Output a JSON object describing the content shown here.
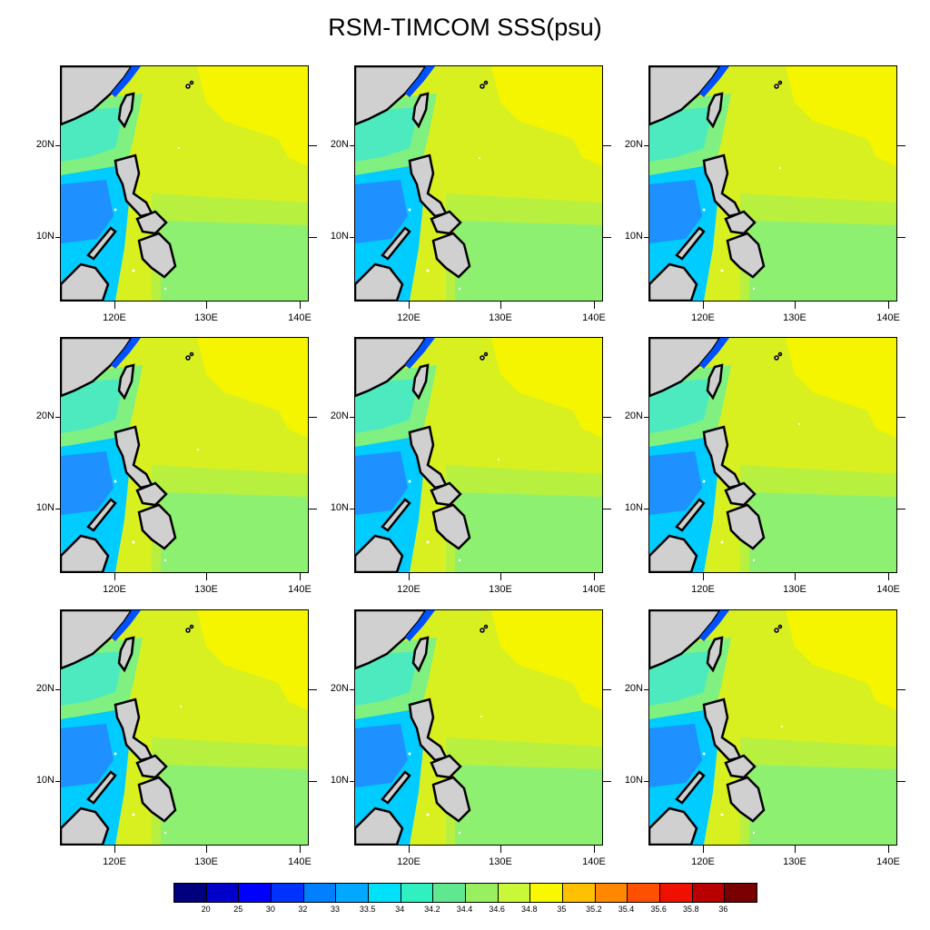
{
  "title": "RSM-TIMCOM SSS(psu)",
  "lat_labels": [
    "20N",
    "10N"
  ],
  "lon_labels": [
    "120E",
    "130E",
    "140E"
  ],
  "panel_count": 9,
  "colorbar": {
    "labels": [
      "20",
      "25",
      "30",
      "32",
      "33",
      "33.5",
      "34",
      "34.2",
      "34.4",
      "34.6",
      "34.8",
      "35",
      "35.2",
      "35.4",
      "35.6",
      "35.8",
      "36"
    ],
    "colors": [
      "#00007F",
      "#0000C8",
      "#0000FF",
      "#0032FF",
      "#0080FF",
      "#00A8FF",
      "#00E0F8",
      "#30F0C0",
      "#60E890",
      "#98F060",
      "#C8F838",
      "#F8F800",
      "#FFC000",
      "#FF8800",
      "#FF5000",
      "#F01000",
      "#B80000",
      "#780000"
    ]
  },
  "map_colors": {
    "land": "#D0D0D0",
    "coast": "#000000",
    "deep_low": "#1E90FF",
    "low": "#00CCFF",
    "mid_low": "#40E8D0",
    "mid": "#80F080",
    "mid_high": "#B8F040",
    "high": "#D8F020",
    "highest": "#F5F500"
  }
}
